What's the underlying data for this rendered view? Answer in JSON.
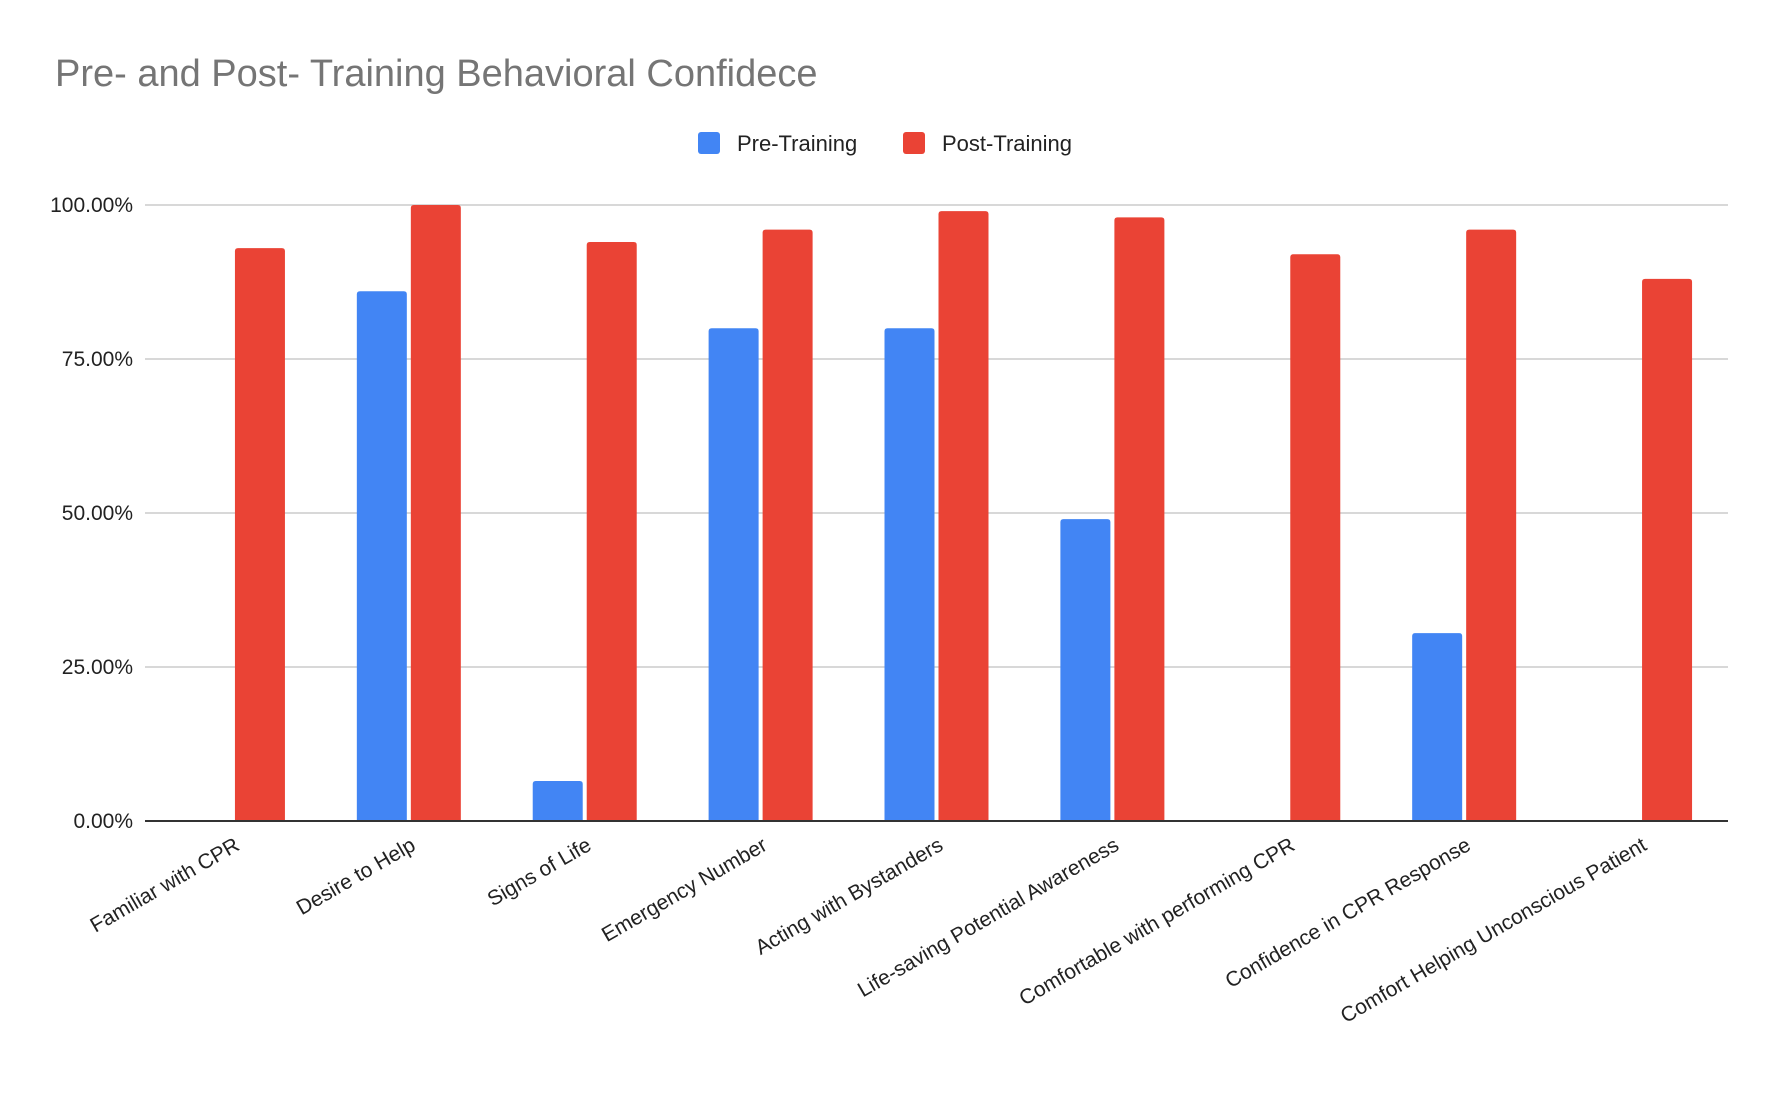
{
  "chart_data": {
    "type": "bar",
    "title": "Pre- and Post- Training Behavioral Confidece",
    "xlabel": "",
    "ylabel": "",
    "ylim": [
      0,
      100
    ],
    "yticks": [
      {
        "value": 0,
        "label": "0.00%"
      },
      {
        "value": 25,
        "label": "25.00%"
      },
      {
        "value": 50,
        "label": "50.00%"
      },
      {
        "value": 75,
        "label": "75.00%"
      },
      {
        "value": 100,
        "label": "100.00%"
      }
    ],
    "grid": true,
    "legend_position": "top-center",
    "categories": [
      "Familiar with CPR",
      "Desire to Help",
      "Signs of Life",
      "Emergency Number",
      "Acting with Bystanders",
      "Life-saving Potential Awareness",
      "Comfortable with performing CPR",
      "Confidence in CPR Response",
      "Comfort Helping Unconscious Patient"
    ],
    "series": [
      {
        "name": "Pre-Training",
        "color": "#4285f4",
        "values": [
          0,
          86,
          6.5,
          80,
          80,
          49,
          0,
          30.5,
          0
        ]
      },
      {
        "name": "Post-Training",
        "color": "#ea4335",
        "values": [
          93,
          100,
          94,
          96,
          99,
          98,
          92,
          96,
          88
        ]
      }
    ]
  }
}
